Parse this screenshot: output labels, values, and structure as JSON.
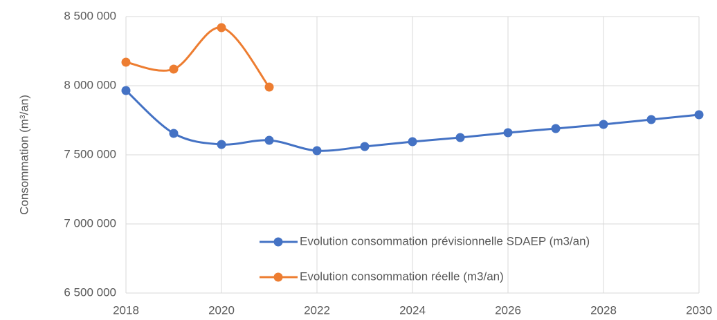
{
  "chart_data": {
    "type": "line",
    "y_label": "Consommation (m³/an)",
    "x": [
      2018,
      2019,
      2020,
      2021,
      2022,
      2023,
      2024,
      2025,
      2026,
      2027,
      2028,
      2029,
      2030
    ],
    "series": [
      {
        "name": "Evolution consommation prévisionnelle SDAEP (m3/an)",
        "color": "#4472c4",
        "values": [
          7965000,
          7655000,
          7575000,
          7605000,
          7530000,
          7560000,
          7595000,
          7625000,
          7660000,
          7690000,
          7720000,
          7755000,
          7790000
        ]
      },
      {
        "name": "Evolution consommation réelle (m3/an)",
        "color": "#ed7d31",
        "values": [
          8170000,
          8120000,
          8420000,
          7990000,
          null,
          null,
          null,
          null,
          null,
          null,
          null,
          null,
          null
        ]
      }
    ],
    "xlim": [
      2018,
      2030
    ],
    "xticks": [
      2018,
      2020,
      2022,
      2024,
      2026,
      2028,
      2030
    ],
    "ylim": [
      6500000,
      8500000
    ],
    "yticks": [
      {
        "value": 6500000,
        "label": "6 500 000"
      },
      {
        "value": 7000000,
        "label": "7 000 000"
      },
      {
        "value": 7500000,
        "label": "7 500 000"
      },
      {
        "value": 8000000,
        "label": "8 000 000"
      },
      {
        "value": 8500000,
        "label": "8 500 000"
      }
    ],
    "grid": true,
    "smooth": true,
    "legend": "lower right"
  }
}
